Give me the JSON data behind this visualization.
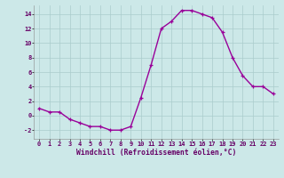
{
  "x": [
    0,
    1,
    2,
    3,
    4,
    5,
    6,
    7,
    8,
    9,
    10,
    11,
    12,
    13,
    14,
    15,
    16,
    17,
    18,
    19,
    20,
    21,
    22,
    23
  ],
  "y": [
    1.0,
    0.5,
    0.5,
    -0.5,
    -1.0,
    -1.5,
    -1.5,
    -2.0,
    -2.0,
    -1.5,
    2.5,
    7.0,
    12.0,
    13.0,
    14.5,
    14.5,
    14.0,
    13.5,
    11.5,
    8.0,
    5.5,
    4.0,
    4.0,
    3.0
  ],
  "line_color": "#990099",
  "marker_color": "#990099",
  "bg_color": "#cce8e8",
  "grid_color": "#aacccc",
  "xlabel": "Windchill (Refroidissement éolien,°C)",
  "xlim": [
    -0.5,
    23.5
  ],
  "ylim": [
    -3.2,
    15.2
  ],
  "xticks": [
    0,
    1,
    2,
    3,
    4,
    5,
    6,
    7,
    8,
    9,
    10,
    11,
    12,
    13,
    14,
    15,
    16,
    17,
    18,
    19,
    20,
    21,
    22,
    23
  ],
  "yticks": [
    -2,
    0,
    2,
    4,
    6,
    8,
    10,
    12,
    14
  ],
  "label_fontsize": 5.8,
  "tick_fontsize": 5.0,
  "marker_size": 2.5,
  "line_width": 1.0
}
